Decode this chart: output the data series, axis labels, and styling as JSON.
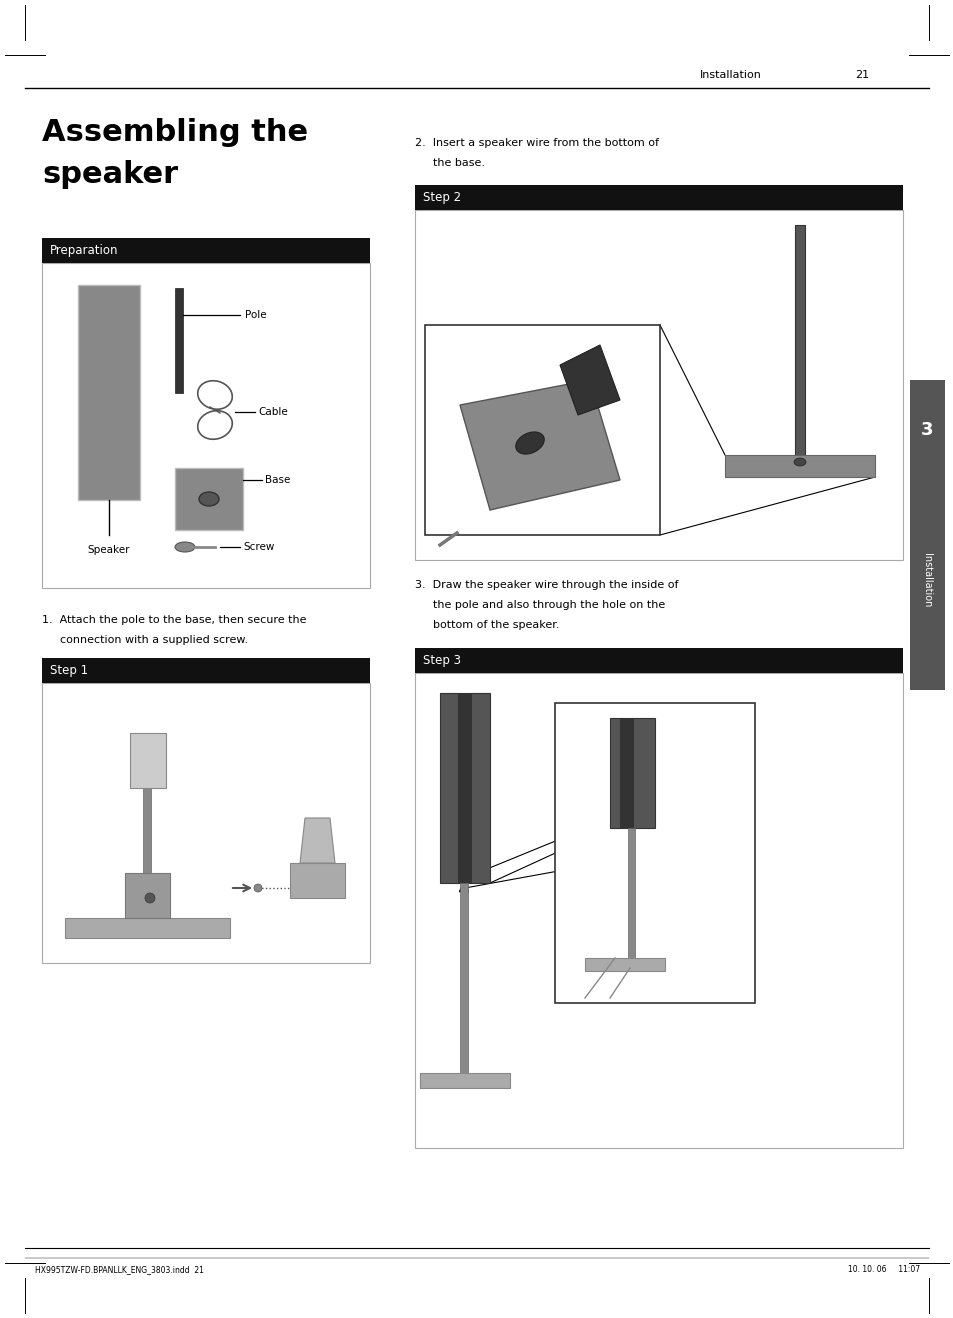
{
  "bg_color": "#ffffff",
  "page_width": 9.54,
  "page_height": 13.18,
  "header_text": "Installation",
  "header_number": "21",
  "footer_left": "HX995TZW-FD.BPANLLK_ENG_3803.indd  21",
  "footer_right": "10. 10. 06     11:07",
  "title_line1": "Assembling the",
  "title_line2": "speaker",
  "section_bar_color": "#111111",
  "section_text_color": "#ffffff",
  "side_bar_color": "#555555",
  "side_text": "Installation",
  "side_number": "3"
}
